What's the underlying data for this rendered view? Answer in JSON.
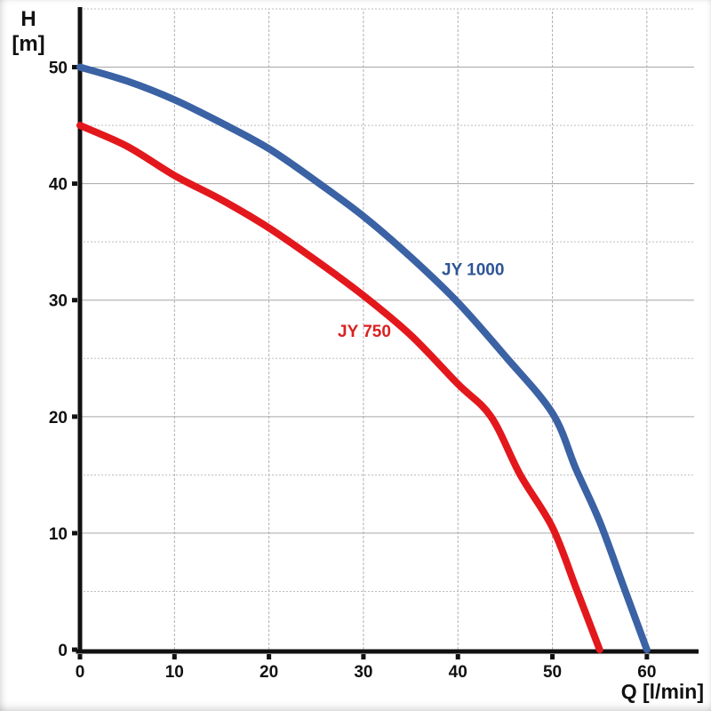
{
  "axes": {
    "y_title_line1": "H",
    "y_title_line2": "[m]",
    "x_title": "Q [l/min]",
    "axis_color": "#111111",
    "grid_major_color": "#a6a6a6",
    "grid_minor_color": "#bdbdbd",
    "grid_vertical_color": "#b0b0b0"
  },
  "chart_data": {
    "type": "line",
    "xlabel": "Q [l/min]",
    "ylabel": "H [m]",
    "xlim": [
      0,
      65
    ],
    "ylim": [
      0,
      55
    ],
    "x_ticks": [
      0,
      10,
      20,
      30,
      40,
      50,
      60
    ],
    "y_ticks": [
      0,
      10,
      20,
      30,
      40,
      50
    ],
    "grid": {
      "vertical_at": [
        10,
        20,
        30,
        40,
        50,
        60
      ],
      "horizontal_major_at": [
        10,
        20,
        30,
        40,
        50
      ],
      "horizontal_minor_at": [
        5,
        15,
        25,
        35,
        45,
        55
      ]
    },
    "legend_position": "inline-labels",
    "series": [
      {
        "name": "JY 1000",
        "color": "#3a62a4",
        "label_color": "#2d5496",
        "label_at": {
          "x": 41.6,
          "y": 32.7
        },
        "points": [
          [
            0,
            50
          ],
          [
            5,
            48.8
          ],
          [
            10,
            47.2
          ],
          [
            15,
            45.2
          ],
          [
            20,
            43
          ],
          [
            25,
            40.2
          ],
          [
            30,
            37.2
          ],
          [
            35,
            33.7
          ],
          [
            40,
            29.8
          ],
          [
            45,
            25.2
          ],
          [
            50,
            20.3
          ],
          [
            52.5,
            15.5
          ],
          [
            55,
            11
          ],
          [
            57.5,
            5.5
          ],
          [
            60,
            0
          ]
        ]
      },
      {
        "name": "JY 750",
        "color": "#e3181c",
        "label_color": "#d92121",
        "label_at": {
          "x": 30.1,
          "y": 27.4
        },
        "points": [
          [
            0,
            45
          ],
          [
            5,
            43.2
          ],
          [
            10,
            40.7
          ],
          [
            15,
            38.6
          ],
          [
            20,
            36.2
          ],
          [
            25,
            33.4
          ],
          [
            30,
            30.4
          ],
          [
            35,
            27
          ],
          [
            40,
            22.8
          ],
          [
            43.5,
            20
          ],
          [
            46.6,
            15
          ],
          [
            50,
            10.5
          ],
          [
            52.5,
            5.3
          ],
          [
            55,
            0
          ]
        ]
      }
    ]
  }
}
